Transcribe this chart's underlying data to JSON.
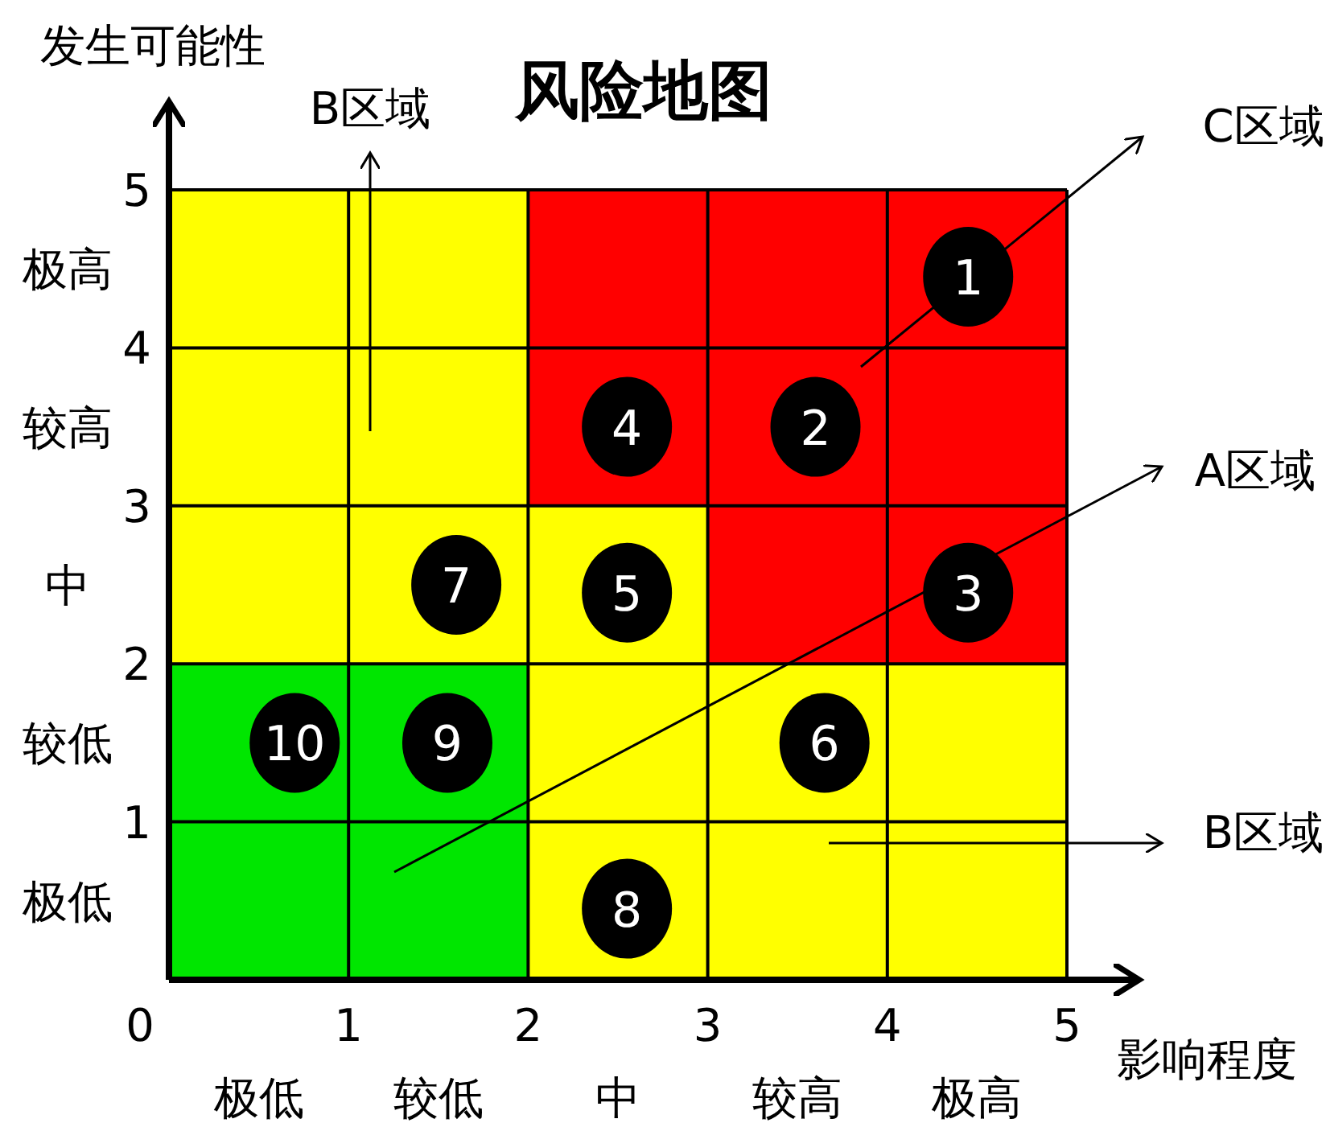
{
  "chart_data": {
    "type": "bar",
    "stacked": true,
    "grid": true,
    "title": "风险地图",
    "xlabel": "影响程度",
    "ylabel": "发生可能性",
    "x": [
      0.5,
      1.5,
      2.5,
      3.5,
      4.5
    ],
    "xlim": [
      0,
      5
    ],
    "ylim": [
      0,
      5
    ],
    "xticks": [
      0,
      1,
      2,
      3,
      4,
      5
    ],
    "yticks": [
      1,
      2,
      3,
      4,
      5
    ],
    "marker": "circle",
    "series": [
      {
        "color": "#00e600",
        "values": [
          2,
          2,
          null,
          null,
          null
        ]
      },
      {
        "color": "#ffff00",
        "values": [
          3,
          3,
          3,
          2,
          2
        ]
      },
      {
        "color": "#ff0000",
        "values": [
          null,
          null,
          2,
          3,
          3
        ]
      },
      {
        "type": "scatter",
        "name": "1",
        "color": "#000000",
        "x": [
          4.45
        ],
        "values": [
          4.45
        ]
      },
      {
        "type": "scatter",
        "name": "2",
        "color": "#000000",
        "x": [
          3.6
        ],
        "values": [
          3.5
        ]
      },
      {
        "type": "scatter",
        "name": "3",
        "color": "#000000",
        "x": [
          4.45
        ],
        "values": [
          2.45
        ]
      },
      {
        "type": "scatter",
        "name": "4",
        "color": "#000000",
        "x": [
          2.55
        ],
        "values": [
          3.5
        ]
      },
      {
        "type": "scatter",
        "name": "5",
        "color": "#000000",
        "x": [
          2.55
        ],
        "values": [
          2.45
        ]
      },
      {
        "type": "scatter",
        "name": "6",
        "color": "#000000",
        "x": [
          3.65
        ],
        "values": [
          1.5
        ]
      },
      {
        "type": "scatter",
        "name": "7",
        "color": "#000000",
        "x": [
          1.6
        ],
        "values": [
          2.5
        ]
      },
      {
        "type": "scatter",
        "name": "8",
        "color": "#000000",
        "x": [
          2.55
        ],
        "values": [
          0.45
        ]
      },
      {
        "type": "scatter",
        "name": "9",
        "color": "#000000",
        "x": [
          1.55
        ],
        "values": [
          1.5
        ]
      },
      {
        "type": "scatter",
        "name": "10",
        "color": "#000000",
        "x": [
          0.7
        ],
        "values": [
          1.5
        ]
      }
    ],
    "annotations": [
      "B区域",
      "C区域",
      "A区域",
      "B区域",
      "极低",
      "较低",
      "中",
      "较高",
      "极高",
      "极高",
      "较高",
      "中",
      "较低",
      "极低"
    ]
  }
}
